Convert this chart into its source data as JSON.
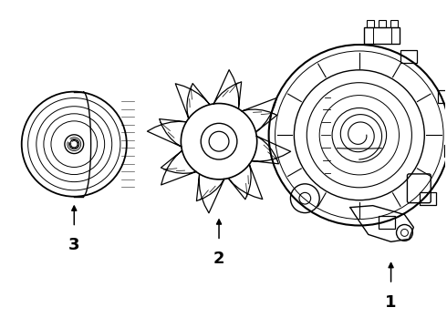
{
  "background_color": "#ffffff",
  "line_color": "#000000",
  "lw": 1.0,
  "figsize": [
    4.9,
    3.6
  ],
  "dpi": 100,
  "label_fontsize": 13,
  "label_fontweight": "bold"
}
